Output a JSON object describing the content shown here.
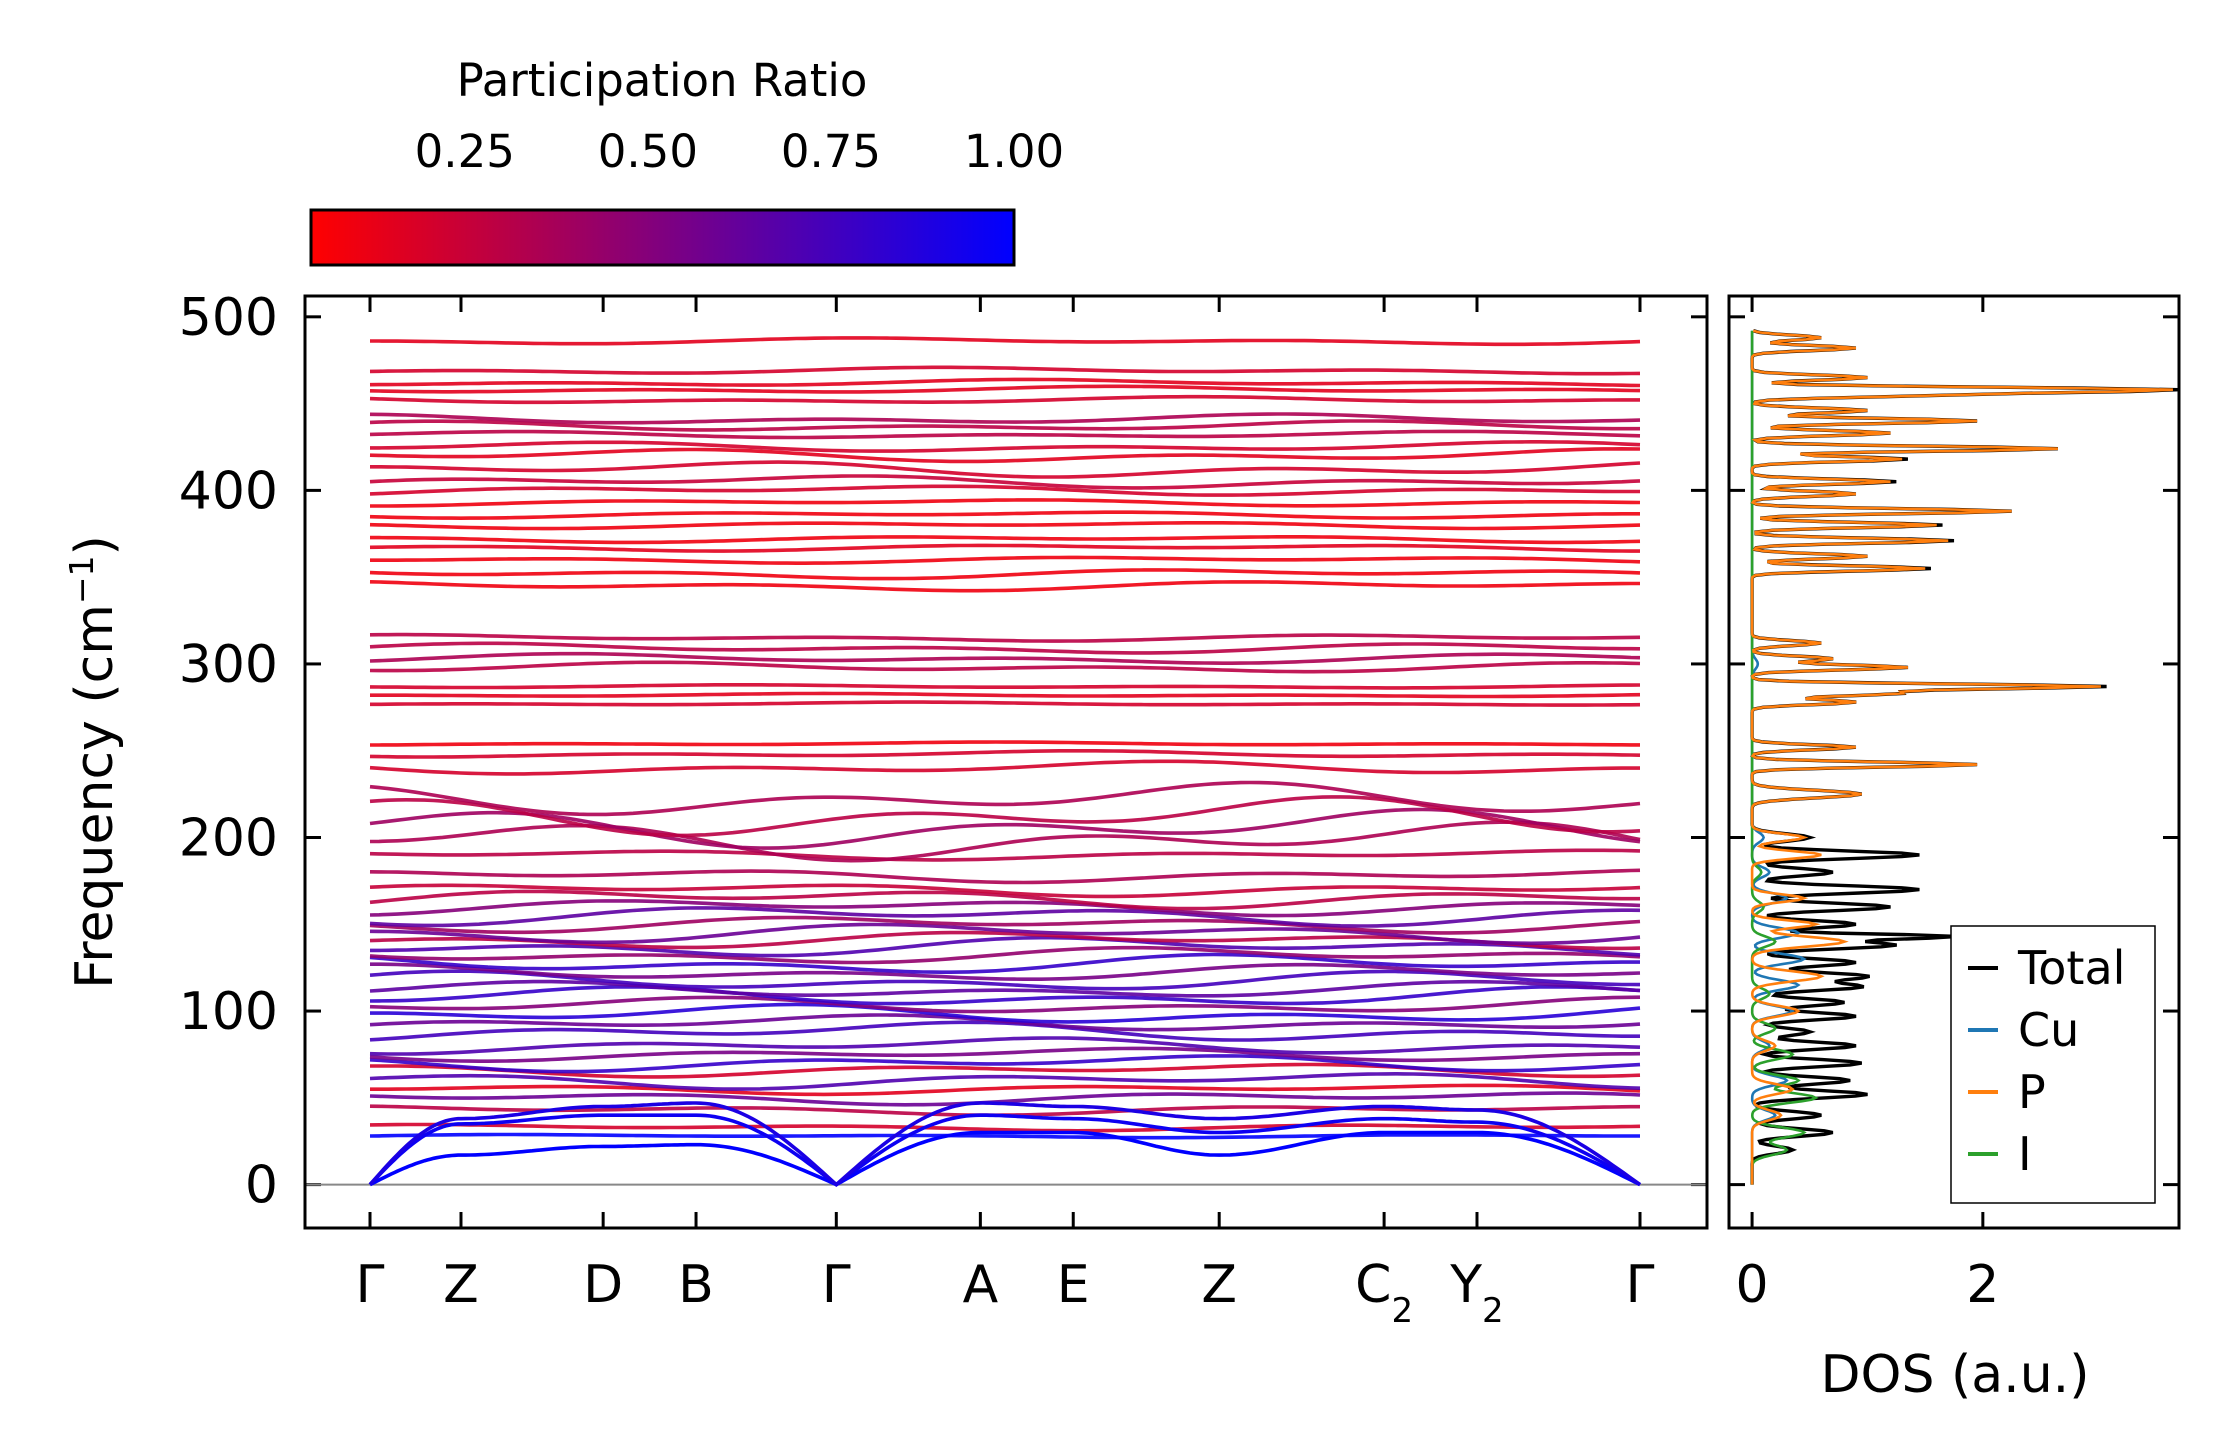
{
  "chart_data": {
    "type": "line",
    "colorbar": {
      "title": "Participation Ratio",
      "ticks": [
        "0.25",
        "0.50",
        "0.75",
        "1.00"
      ],
      "tick_values": [
        0.25,
        0.5,
        0.75,
        1.0
      ],
      "range": [
        0.04,
        1.0
      ],
      "color_low": "#ff0000",
      "color_high": "#0000ff"
    },
    "band": {
      "ylabel_main": "Frequency (cm",
      "ylabel_sup": "−1",
      "ylabel_close": ")",
      "ylim": [
        -25,
        512
      ],
      "yticks": [
        {
          "value": 0,
          "label": "0"
        },
        {
          "value": 100,
          "label": "100"
        },
        {
          "value": 200,
          "label": "200"
        },
        {
          "value": 300,
          "label": "300"
        },
        {
          "value": 400,
          "label": "400"
        },
        {
          "value": 500,
          "label": "500"
        }
      ],
      "path_positions": [
        0,
        0.48,
        1.23,
        1.72,
        2.46,
        3.22,
        3.71,
        4.48,
        5.35,
        5.84,
        6.7
      ],
      "kpoints": [
        {
          "label": "Γ",
          "sub": ""
        },
        {
          "label": "Z",
          "sub": ""
        },
        {
          "label": "D",
          "sub": ""
        },
        {
          "label": "B",
          "sub": ""
        },
        {
          "label": "Γ",
          "sub": ""
        },
        {
          "label": "A",
          "sub": ""
        },
        {
          "label": "E",
          "sub": ""
        },
        {
          "label": "Z",
          "sub": ""
        },
        {
          "label": "C",
          "sub": "2"
        },
        {
          "label": "Y",
          "sub": "2"
        },
        {
          "label": "Γ",
          "sub": ""
        }
      ],
      "acoustic_branches": [
        {
          "name": "acoustic-1",
          "freq": [
            0,
            17,
            22,
            23,
            0,
            30,
            30,
            17,
            30,
            30,
            0
          ],
          "pr": 1.0
        },
        {
          "name": "acoustic-2",
          "freq": [
            0,
            35,
            40,
            40,
            0,
            40,
            38,
            30,
            38,
            36,
            0
          ],
          "pr": 0.95
        },
        {
          "name": "acoustic-3",
          "freq": [
            0,
            38,
            45,
            47,
            0,
            47,
            45,
            38,
            45,
            43,
            0
          ],
          "pr": 0.9
        }
      ],
      "optical_bands": [
        {
          "base": 28,
          "amp": 1,
          "pr": 1.0
        },
        {
          "base": 33,
          "amp": 2,
          "pr": 0.2
        },
        {
          "base": 43,
          "amp": 3,
          "pr": 0.3
        },
        {
          "base": 50,
          "amp": 4,
          "pr": 0.6
        },
        {
          "base": 55,
          "amp": 3,
          "pr": 0.15
        },
        {
          "base": 60,
          "amp": 5,
          "pr": 0.7
        },
        {
          "base": 66,
          "amp": 4,
          "pr": 0.2
        },
        {
          "base": 70,
          "amp": 5,
          "pr": 0.8
        },
        {
          "base": 75,
          "amp": 4,
          "pr": 0.55
        },
        {
          "base": 80,
          "amp": 5,
          "pr": 0.7
        },
        {
          "base": 88,
          "amp": 6,
          "pr": 0.75
        },
        {
          "base": 93,
          "amp": 5,
          "pr": 0.6
        },
        {
          "base": 98,
          "amp": 6,
          "pr": 0.85
        },
        {
          "base": 103,
          "amp": 5,
          "pr": 0.5
        },
        {
          "base": 108,
          "amp": 6,
          "pr": 0.8
        },
        {
          "base": 112,
          "amp": 5,
          "pr": 0.65
        },
        {
          "base": 117,
          "amp": 6,
          "pr": 0.75
        },
        {
          "base": 122,
          "amp": 5,
          "pr": 0.55
        },
        {
          "base": 127,
          "amp": 6,
          "pr": 0.8
        },
        {
          "base": 132,
          "amp": 5,
          "pr": 0.45
        },
        {
          "base": 137,
          "amp": 6,
          "pr": 0.7
        },
        {
          "base": 141,
          "amp": 5,
          "pr": 0.3
        },
        {
          "base": 145,
          "amp": 6,
          "pr": 0.6
        },
        {
          "base": 150,
          "amp": 5,
          "pr": 0.4
        },
        {
          "base": 155,
          "amp": 6,
          "pr": 0.65
        },
        {
          "base": 160,
          "amp": 5,
          "pr": 0.5
        },
        {
          "base": 165,
          "amp": 6,
          "pr": 0.3
        },
        {
          "base": 170,
          "amp": 4,
          "pr": 0.25
        },
        {
          "base": 178,
          "amp": 4,
          "pr": 0.35
        },
        {
          "base": 190,
          "amp": 3,
          "pr": 0.3
        },
        {
          "base": 198,
          "amp": 12,
          "pr": 0.35
        },
        {
          "base": 205,
          "amp": 12,
          "pr": 0.4
        },
        {
          "base": 212,
          "amp": 12,
          "pr": 0.3
        },
        {
          "base": 222,
          "amp": 10,
          "pr": 0.35
        },
        {
          "base": 240,
          "amp": 4,
          "pr": 0.2
        },
        {
          "base": 248,
          "amp": 2,
          "pr": 0.2
        },
        {
          "base": 254,
          "amp": 1,
          "pr": 0.1
        },
        {
          "base": 277,
          "amp": 1,
          "pr": 0.2
        },
        {
          "base": 282,
          "amp": 1,
          "pr": 0.15
        },
        {
          "base": 287,
          "amp": 1,
          "pr": 0.2
        },
        {
          "base": 298,
          "amp": 3,
          "pr": 0.3
        },
        {
          "base": 303,
          "amp": 3,
          "pr": 0.35
        },
        {
          "base": 309,
          "amp": 3,
          "pr": 0.3
        },
        {
          "base": 315,
          "amp": 2,
          "pr": 0.3
        },
        {
          "base": 345,
          "amp": 3,
          "pr": 0.1
        },
        {
          "base": 352,
          "amp": 3,
          "pr": 0.1
        },
        {
          "base": 360,
          "amp": 2,
          "pr": 0.1
        },
        {
          "base": 367,
          "amp": 2,
          "pr": 0.15
        },
        {
          "base": 372,
          "amp": 2,
          "pr": 0.1
        },
        {
          "base": 380,
          "amp": 2,
          "pr": 0.1
        },
        {
          "base": 386,
          "amp": 2,
          "pr": 0.1
        },
        {
          "base": 393,
          "amp": 2,
          "pr": 0.1
        },
        {
          "base": 400,
          "amp": 3,
          "pr": 0.2
        },
        {
          "base": 405,
          "amp": 4,
          "pr": 0.25
        },
        {
          "base": 412,
          "amp": 5,
          "pr": 0.2
        },
        {
          "base": 420,
          "amp": 4,
          "pr": 0.15
        },
        {
          "base": 425,
          "amp": 3,
          "pr": 0.2
        },
        {
          "base": 432,
          "amp": 2,
          "pr": 0.3
        },
        {
          "base": 437,
          "amp": 3,
          "pr": 0.3
        },
        {
          "base": 441,
          "amp": 3,
          "pr": 0.35
        },
        {
          "base": 452,
          "amp": 2,
          "pr": 0.2
        },
        {
          "base": 458,
          "amp": 2,
          "pr": 0.15
        },
        {
          "base": 462,
          "amp": 2,
          "pr": 0.15
        },
        {
          "base": 469,
          "amp": 2,
          "pr": 0.2
        },
        {
          "base": 486,
          "amp": 2,
          "pr": 0.15
        }
      ],
      "zero_line": 0
    },
    "dos": {
      "xlabel": "DOS (a.u.)",
      "xlim": [
        -0.2,
        3.7
      ],
      "xticks": [
        {
          "value": 0,
          "label": "0"
        },
        {
          "value": 2,
          "label": "2"
        }
      ],
      "legend_position": "lower-right",
      "series": [
        {
          "name": "Total",
          "color": "#000000",
          "peaks": [
            [
              20,
              0.35,
              3
            ],
            [
              30,
              0.7,
              3
            ],
            [
              40,
              0.6,
              3
            ],
            [
              52,
              1.0,
              3
            ],
            [
              60,
              0.85,
              3
            ],
            [
              70,
              0.95,
              3
            ],
            [
              80,
              0.9,
              3
            ],
            [
              88,
              0.5,
              3
            ],
            [
              97,
              0.9,
              3
            ],
            [
              105,
              0.8,
              3
            ],
            [
              114,
              0.95,
              3
            ],
            [
              120,
              1.0,
              3
            ],
            [
              128,
              0.9,
              3
            ],
            [
              138,
              1.25,
              3
            ],
            [
              143,
              1.7,
              2
            ],
            [
              150,
              0.9,
              3
            ],
            [
              160,
              1.2,
              3
            ],
            [
              170,
              1.45,
              3
            ],
            [
              180,
              0.7,
              3
            ],
            [
              190,
              1.45,
              3
            ],
            [
              200,
              0.5,
              3
            ],
            [
              225,
              0.95,
              3
            ],
            [
              242,
              1.95,
              2
            ],
            [
              252,
              0.9,
              2
            ],
            [
              278,
              0.9,
              2
            ],
            [
              283,
              1.25,
              2
            ],
            [
              287,
              3.05,
              2
            ],
            [
              298,
              1.35,
              2
            ],
            [
              303,
              0.7,
              2
            ],
            [
              312,
              0.6,
              2
            ],
            [
              355,
              1.55,
              2
            ],
            [
              362,
              1.0,
              2
            ],
            [
              371,
              1.75,
              2
            ],
            [
              380,
              1.65,
              2
            ],
            [
              388,
              2.25,
              2
            ],
            [
              398,
              0.9,
              2
            ],
            [
              405,
              1.25,
              2
            ],
            [
              418,
              1.35,
              2
            ],
            [
              424,
              2.65,
              2
            ],
            [
              433,
              1.2,
              2
            ],
            [
              440,
              1.95,
              2
            ],
            [
              446,
              1.0,
              2
            ],
            [
              455,
              1.4,
              2
            ],
            [
              458,
              3.55,
              2
            ],
            [
              465,
              1.0,
              2
            ],
            [
              482,
              0.9,
              2
            ],
            [
              488,
              0.6,
              2
            ]
          ]
        },
        {
          "name": "Cu",
          "color": "#1f77b4",
          "peaks": [
            [
              40,
              0.2,
              4
            ],
            [
              60,
              0.3,
              4
            ],
            [
              80,
              0.15,
              4
            ],
            [
              100,
              0.35,
              4
            ],
            [
              115,
              0.4,
              4
            ],
            [
              130,
              0.45,
              4
            ],
            [
              145,
              0.4,
              4
            ],
            [
              165,
              0.3,
              4
            ],
            [
              180,
              0.15,
              4
            ],
            [
              200,
              0.1,
              4
            ],
            [
              300,
              0.05,
              4
            ]
          ]
        },
        {
          "name": "P",
          "color": "#ff7f0e",
          "peaks": [
            [
              40,
              0.25,
              4
            ],
            [
              55,
              0.35,
              4
            ],
            [
              80,
              0.2,
              4
            ],
            [
              100,
              0.4,
              4
            ],
            [
              120,
              0.6,
              4
            ],
            [
              140,
              0.8,
              4
            ],
            [
              150,
              0.55,
              3
            ],
            [
              165,
              0.45,
              3
            ],
            [
              190,
              0.6,
              3
            ],
            [
              200,
              0.45,
              3
            ],
            [
              225,
              0.95,
              3
            ],
            [
              242,
              1.95,
              2
            ],
            [
              252,
              0.9,
              2
            ],
            [
              278,
              0.9,
              2
            ],
            [
              283,
              1.25,
              2
            ],
            [
              287,
              3.0,
              2
            ],
            [
              298,
              1.35,
              2
            ],
            [
              303,
              0.7,
              2
            ],
            [
              312,
              0.6,
              2
            ],
            [
              355,
              1.5,
              2
            ],
            [
              362,
              1.0,
              2
            ],
            [
              371,
              1.7,
              2
            ],
            [
              380,
              1.6,
              2
            ],
            [
              388,
              2.25,
              2
            ],
            [
              398,
              0.9,
              2
            ],
            [
              405,
              1.2,
              2
            ],
            [
              418,
              1.3,
              2
            ],
            [
              424,
              2.65,
              2
            ],
            [
              433,
              1.2,
              2
            ],
            [
              440,
              1.95,
              2
            ],
            [
              446,
              1.0,
              2
            ],
            [
              455,
              1.4,
              2
            ],
            [
              458,
              3.5,
              2
            ],
            [
              465,
              1.0,
              2
            ],
            [
              482,
              0.9,
              2
            ],
            [
              488,
              0.6,
              2
            ]
          ]
        },
        {
          "name": "I",
          "color": "#2ca02c",
          "peaks": [
            [
              20,
              0.3,
              4
            ],
            [
              30,
              0.45,
              4
            ],
            [
              50,
              0.55,
              4
            ],
            [
              60,
              0.4,
              4
            ],
            [
              75,
              0.35,
              4
            ],
            [
              90,
              0.2,
              4
            ],
            [
              110,
              0.15,
              4
            ],
            [
              140,
              0.2,
              4
            ],
            [
              160,
              0.1,
              4
            ],
            [
              180,
              0.08,
              4
            ]
          ]
        }
      ]
    }
  }
}
